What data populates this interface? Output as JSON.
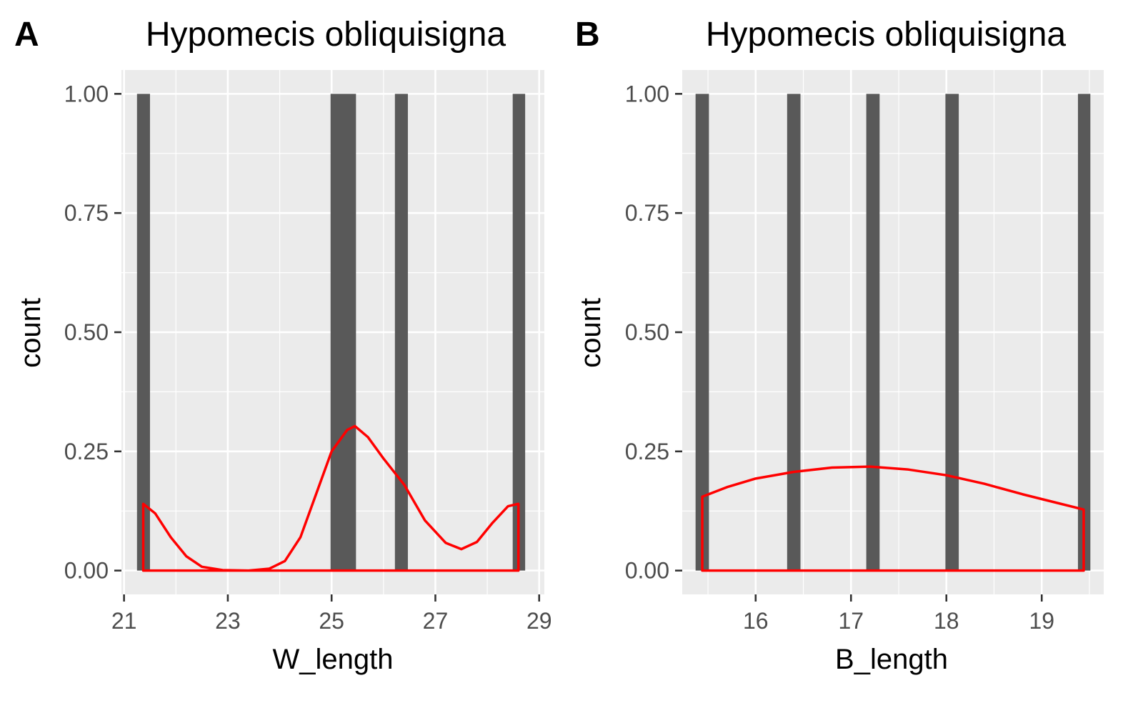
{
  "chart_data": [
    {
      "type": "bar",
      "panel_tag": "A",
      "title": "Hypomecis obliquisigna",
      "xlabel": "W_length",
      "ylabel": "count",
      "xlim": [
        20.95,
        29.1
      ],
      "ylim": [
        -0.05,
        1.05
      ],
      "x_ticks": [
        21,
        23,
        25,
        27,
        29
      ],
      "x_tick_labels": [
        "21",
        "23",
        "25",
        "27",
        "29"
      ],
      "y_ticks": [
        0,
        0.25,
        0.5,
        0.75,
        1
      ],
      "y_tick_labels": [
        "0.00",
        "0.25",
        "0.50",
        "0.75",
        "1.00"
      ],
      "grid": true,
      "bar_color": "#595959",
      "bars": [
        {
          "x_left": 21.25,
          "x_right": 21.5,
          "count": 1
        },
        {
          "x_left": 24.98,
          "x_right": 25.47,
          "count": 1
        },
        {
          "x_left": 26.22,
          "x_right": 26.47,
          "count": 1
        },
        {
          "x_left": 28.49,
          "x_right": 28.73,
          "count": 1
        }
      ],
      "density_color": "#ff0000",
      "density": [
        [
          21.37,
          0.14
        ],
        [
          21.6,
          0.12
        ],
        [
          21.9,
          0.07
        ],
        [
          22.2,
          0.03
        ],
        [
          22.5,
          0.008
        ],
        [
          22.9,
          0.001
        ],
        [
          23.4,
          0.0
        ],
        [
          23.8,
          0.004
        ],
        [
          24.1,
          0.02
        ],
        [
          24.4,
          0.07
        ],
        [
          24.7,
          0.16
        ],
        [
          25.0,
          0.25
        ],
        [
          25.3,
          0.295
        ],
        [
          25.45,
          0.303
        ],
        [
          25.7,
          0.28
        ],
        [
          26.0,
          0.235
        ],
        [
          26.4,
          0.18
        ],
        [
          26.8,
          0.105
        ],
        [
          27.2,
          0.058
        ],
        [
          27.5,
          0.045
        ],
        [
          27.8,
          0.06
        ],
        [
          28.1,
          0.1
        ],
        [
          28.4,
          0.135
        ],
        [
          28.6,
          0.14
        ]
      ]
    },
    {
      "type": "bar",
      "panel_tag": "B",
      "title": "Hypomecis obliquisigna",
      "xlabel": "B_length",
      "ylabel": "count",
      "xlim": [
        15.23,
        19.65
      ],
      "ylim": [
        -0.05,
        1.05
      ],
      "x_ticks": [
        16,
        17,
        18,
        19
      ],
      "x_tick_labels": [
        "16",
        "17",
        "18",
        "19"
      ],
      "y_ticks": [
        0,
        0.25,
        0.5,
        0.75,
        1
      ],
      "y_tick_labels": [
        "0.00",
        "0.25",
        "0.50",
        "0.75",
        "1.00"
      ],
      "grid": true,
      "bar_color": "#595959",
      "bars": [
        {
          "x_left": 15.37,
          "x_right": 15.51,
          "count": 1
        },
        {
          "x_left": 16.33,
          "x_right": 16.47,
          "count": 1
        },
        {
          "x_left": 17.16,
          "x_right": 17.3,
          "count": 1
        },
        {
          "x_left": 17.99,
          "x_right": 18.13,
          "count": 1
        },
        {
          "x_left": 19.38,
          "x_right": 19.51,
          "count": 1
        }
      ],
      "density_color": "#ff0000",
      "density": [
        [
          15.44,
          0.155
        ],
        [
          15.7,
          0.175
        ],
        [
          16.0,
          0.193
        ],
        [
          16.4,
          0.207
        ],
        [
          16.8,
          0.216
        ],
        [
          17.2,
          0.218
        ],
        [
          17.6,
          0.212
        ],
        [
          18.0,
          0.2
        ],
        [
          18.4,
          0.182
        ],
        [
          18.8,
          0.16
        ],
        [
          19.1,
          0.145
        ],
        [
          19.44,
          0.128
        ]
      ]
    }
  ]
}
